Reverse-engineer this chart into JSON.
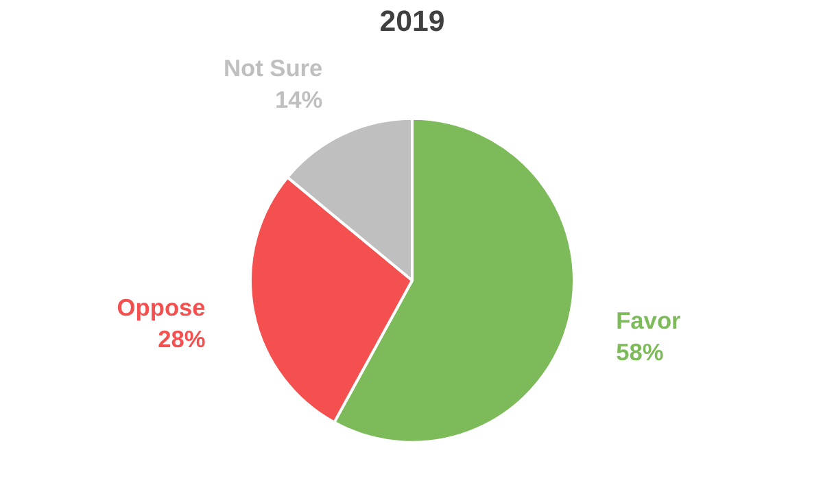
{
  "chart_data": {
    "type": "pie",
    "title": "2019",
    "categories": [
      "Favor",
      "Oppose",
      "Not Sure"
    ],
    "values": [
      58,
      28,
      14
    ],
    "value_labels": [
      "58%",
      "28%",
      "14%"
    ],
    "colors": [
      "#7dba5a",
      "#f55050",
      "#bfbfbf"
    ]
  }
}
